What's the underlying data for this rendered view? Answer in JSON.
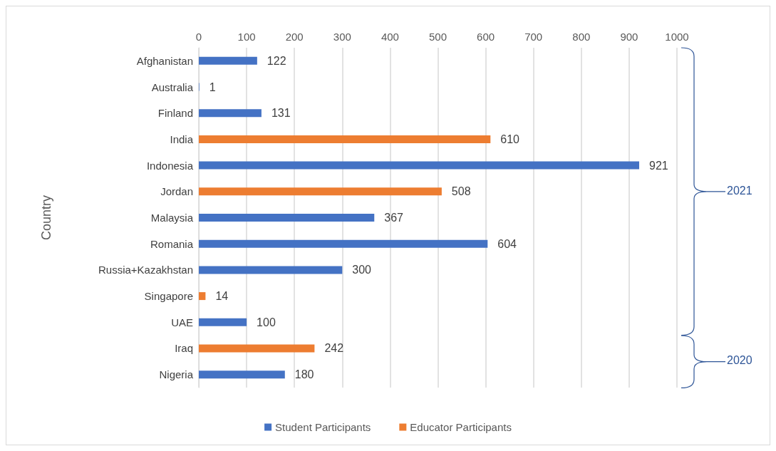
{
  "chart_data": {
    "type": "bar",
    "orientation": "horizontal",
    "ylabel": "Country",
    "categories": [
      "Afghanistan",
      "Australia",
      "Finland",
      "India",
      "Indonesia",
      "Jordan",
      "Malaysia",
      "Romania",
      "Russia+Kazakhstan",
      "Singapore",
      "UAE",
      "Iraq",
      "Nigeria"
    ],
    "series": [
      {
        "name": "Student Participants",
        "color": "#4472c4",
        "values": [
          122,
          1,
          131,
          null,
          921,
          null,
          367,
          604,
          300,
          null,
          100,
          null,
          180
        ]
      },
      {
        "name": "Educator Participants",
        "color": "#ed7d31",
        "values": [
          null,
          null,
          null,
          610,
          null,
          508,
          null,
          null,
          null,
          14,
          null,
          242,
          null
        ]
      }
    ],
    "xlim": [
      0,
      1000
    ],
    "xticks": [
      0,
      100,
      200,
      300,
      400,
      500,
      600,
      700,
      800,
      900,
      1000
    ],
    "grid": "x",
    "legend": "bottom",
    "data_labels": true,
    "annotations": [
      "2021",
      "2020"
    ]
  }
}
